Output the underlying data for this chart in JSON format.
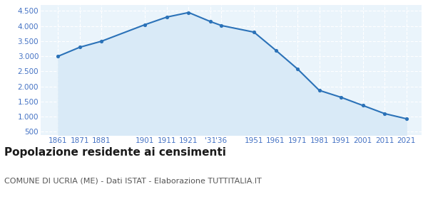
{
  "years": [
    1861,
    1871,
    1881,
    1901,
    1911,
    1921,
    1931,
    1936,
    1951,
    1961,
    1971,
    1981,
    1991,
    2001,
    2011,
    2021
  ],
  "population": [
    3000,
    3300,
    3500,
    4050,
    4300,
    4450,
    4150,
    4020,
    3800,
    3200,
    2580,
    1870,
    1640,
    1370,
    1100,
    930
  ],
  "y_ticks": [
    500,
    1000,
    1500,
    2000,
    2500,
    3000,
    3500,
    4000,
    4500
  ],
  "ylim": [
    380,
    4700
  ],
  "xlim": [
    1853,
    2028
  ],
  "line_color": "#2b72b8",
  "fill_color": "#d9eaf7",
  "marker_color": "#2b72b8",
  "bg_color": "#eaf4fb",
  "grid_color": "#ffffff",
  "tick_color": "#4472c4",
  "tick_fontsize": 7.5,
  "title": "Popolazione residente ai censimenti",
  "subtitle": "COMUNE DI UCRIA (ME) - Dati ISTAT - Elaborazione TUTTITALIA.IT",
  "title_fontsize": 11,
  "subtitle_fontsize": 8
}
